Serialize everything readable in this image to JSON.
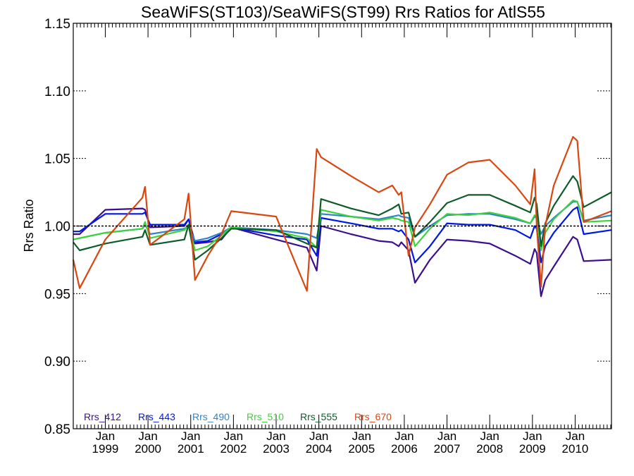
{
  "chart_data": {
    "type": "line",
    "title": "SeaWiFS(ST103)/SeaWiFS(ST99)  Rrs Ratios for AtlS55",
    "xlabel": "",
    "ylabel": "Rrs Ratio",
    "xlim": [
      1998.25,
      2010.85
    ],
    "ylim": [
      0.85,
      1.15
    ],
    "yticks": [
      0.85,
      0.9,
      0.95,
      1.0,
      1.05,
      1.1,
      1.15
    ],
    "ytick_labels": [
      "0.85",
      "0.90",
      "0.95",
      "1.00",
      "1.05",
      "1.10",
      "1.15"
    ],
    "xticks": [
      {
        "x": 1999.0,
        "line1": "Jan",
        "line2": "1999"
      },
      {
        "x": 2000.0,
        "line1": "Jan",
        "line2": "2000"
      },
      {
        "x": 2001.0,
        "line1": "Jan",
        "line2": "2001"
      },
      {
        "x": 2002.0,
        "line1": "Jan",
        "line2": "2002"
      },
      {
        "x": 2003.0,
        "line1": "Jan",
        "line2": "2003"
      },
      {
        "x": 2004.0,
        "line1": "Jan",
        "line2": "2004"
      },
      {
        "x": 2005.0,
        "line1": "Jan",
        "line2": "2005"
      },
      {
        "x": 2006.0,
        "line1": "Jan",
        "line2": "2006"
      },
      {
        "x": 2007.0,
        "line1": "Jan",
        "line2": "2007"
      },
      {
        "x": 2008.0,
        "line1": "Jan",
        "line2": "2008"
      },
      {
        "x": 2009.0,
        "line1": "Jan",
        "line2": "2009"
      },
      {
        "x": 2010.0,
        "line1": "Jan",
        "line2": "2010"
      }
    ],
    "reference_line": 1.0,
    "legend_placement": "bottom-left",
    "series": [
      {
        "name": "Rrs_412",
        "color": "#3b0f8f",
        "x": [
          1998.25,
          1998.4,
          1999.0,
          1999.87,
          1999.93,
          2000.05,
          2000.85,
          2000.95,
          2001.1,
          2001.4,
          2001.72,
          2001.95,
          2003.0,
          2003.72,
          2003.95,
          2004.05,
          2004.75,
          2005.4,
          2005.72,
          2005.87,
          2005.93,
          2006.1,
          2006.25,
          2006.6,
          2007.0,
          2007.5,
          2008.0,
          2008.6,
          2008.95,
          2009.05,
          2009.1,
          2009.2,
          2009.3,
          2009.5,
          2009.95,
          2010.05,
          2010.2,
          2010.85
        ],
        "y": [
          0.994,
          0.994,
          1.012,
          1.013,
          1.012,
          0.999,
          1.0,
          1.005,
          0.987,
          0.988,
          0.99,
          0.999,
          0.99,
          0.984,
          0.967,
          1.0,
          0.994,
          0.989,
          0.988,
          0.985,
          0.988,
          0.982,
          0.958,
          0.975,
          0.99,
          0.989,
          0.987,
          0.978,
          0.972,
          0.983,
          0.98,
          0.948,
          0.96,
          0.97,
          0.992,
          0.99,
          0.974,
          0.975
        ]
      },
      {
        "name": "Rrs_443",
        "color": "#0018e6",
        "x": [
          1998.25,
          1998.4,
          1999.0,
          1999.87,
          1999.93,
          2000.05,
          2000.85,
          2000.95,
          2001.1,
          2001.4,
          2001.72,
          2001.95,
          2003.0,
          2003.72,
          2003.95,
          2004.05,
          2004.75,
          2005.4,
          2005.72,
          2005.87,
          2005.93,
          2006.1,
          2006.25,
          2006.6,
          2007.0,
          2007.5,
          2008.0,
          2008.6,
          2008.95,
          2009.05,
          2009.1,
          2009.2,
          2009.3,
          2009.5,
          2009.95,
          2010.05,
          2010.2,
          2010.85
        ],
        "y": [
          0.996,
          0.996,
          1.009,
          1.009,
          1.01,
          1.001,
          1.001,
          1.005,
          0.988,
          0.989,
          0.994,
          0.999,
          0.993,
          0.99,
          0.978,
          1.006,
          1.002,
          0.998,
          0.998,
          0.996,
          0.997,
          0.99,
          0.973,
          0.985,
          1.002,
          1.001,
          1.001,
          0.997,
          0.991,
          1.0,
          0.998,
          0.973,
          0.985,
          0.995,
          1.012,
          1.014,
          0.994,
          0.997
        ]
      },
      {
        "name": "Rrs_490",
        "color": "#2f83c8",
        "x": [
          1998.25,
          1998.4,
          1999.0,
          1999.87,
          1999.93,
          2000.05,
          2000.85,
          2000.95,
          2001.1,
          2001.4,
          2001.72,
          2001.95,
          2003.0,
          2003.72,
          2003.95,
          2004.05,
          2004.75,
          2005.4,
          2005.72,
          2005.87,
          2005.93,
          2006.1,
          2006.25,
          2006.6,
          2007.0,
          2007.5,
          2008.0,
          2008.6,
          2008.95,
          2009.05,
          2009.1,
          2009.2,
          2009.3,
          2009.5,
          2009.95,
          2010.05,
          2010.2,
          2010.85
        ],
        "y": [
          0.99,
          0.991,
          0.995,
          0.998,
          1.001,
          0.994,
          0.998,
          1.0,
          0.989,
          0.991,
          0.995,
          0.999,
          0.997,
          0.994,
          0.991,
          1.009,
          1.007,
          1.005,
          1.007,
          1.008,
          1.007,
          1.006,
          0.992,
          1.0,
          1.008,
          1.009,
          1.009,
          1.005,
          1.002,
          1.007,
          1.006,
          0.994,
          1.0,
          1.006,
          1.018,
          1.018,
          1.004,
          1.008
        ]
      },
      {
        "name": "Rrs_510",
        "color": "#3dd33a",
        "x": [
          1998.25,
          1998.4,
          1999.0,
          1999.87,
          1999.93,
          2000.05,
          2000.85,
          2000.95,
          2001.1,
          2001.4,
          2001.72,
          2001.95,
          2003.0,
          2003.72,
          2003.95,
          2004.05,
          2004.75,
          2005.4,
          2005.72,
          2005.87,
          2005.93,
          2006.1,
          2006.25,
          2006.6,
          2007.0,
          2007.5,
          2008.0,
          2008.6,
          2008.95,
          2009.05,
          2009.1,
          2009.2,
          2009.3,
          2009.5,
          2009.95,
          2010.05,
          2010.2,
          2010.85
        ],
        "y": [
          0.99,
          0.991,
          0.995,
          0.998,
          1.003,
          0.991,
          0.997,
          1.001,
          0.982,
          0.985,
          0.993,
          0.999,
          0.996,
          0.991,
          0.984,
          1.012,
          1.007,
          1.004,
          1.006,
          1.005,
          1.004,
          1.003,
          0.985,
          0.998,
          1.009,
          1.008,
          1.01,
          1.006,
          1.002,
          1.008,
          1.007,
          0.982,
          0.995,
          1.005,
          1.019,
          1.018,
          1.003,
          1.004
        ]
      },
      {
        "name": "Rrs_555",
        "color": "#0e5c2a",
        "x": [
          1998.25,
          1998.4,
          1999.0,
          1999.87,
          1999.93,
          2000.05,
          2000.85,
          2000.95,
          2001.1,
          2001.4,
          2001.72,
          2001.95,
          2003.0,
          2003.72,
          2003.95,
          2004.05,
          2004.75,
          2005.4,
          2005.72,
          2005.87,
          2005.93,
          2006.1,
          2006.25,
          2006.6,
          2007.0,
          2007.5,
          2008.0,
          2008.6,
          2008.95,
          2009.05,
          2009.1,
          2009.2,
          2009.3,
          2009.5,
          2009.95,
          2010.05,
          2010.2,
          2010.85
        ],
        "y": [
          0.988,
          0.982,
          0.987,
          0.992,
          0.997,
          0.986,
          0.99,
          1.001,
          0.975,
          0.982,
          0.991,
          0.998,
          0.997,
          0.987,
          0.984,
          1.02,
          1.013,
          1.008,
          1.013,
          1.016,
          1.009,
          1.01,
          0.992,
          1.003,
          1.017,
          1.023,
          1.023,
          1.015,
          1.01,
          1.021,
          1.016,
          0.985,
          1.002,
          1.015,
          1.037,
          1.033,
          1.014,
          1.025
        ]
      },
      {
        "name": "Rrs_670",
        "color": "#d9470f",
        "x": [
          1998.25,
          1998.4,
          1999.0,
          1999.87,
          1999.93,
          2000.05,
          2000.85,
          2000.95,
          2001.1,
          2001.4,
          2001.72,
          2001.95,
          2003.0,
          2003.72,
          2003.95,
          2004.05,
          2004.75,
          2005.4,
          2005.72,
          2005.87,
          2005.93,
          2006.1,
          2006.25,
          2006.6,
          2007.0,
          2007.5,
          2008.0,
          2008.6,
          2008.95,
          2009.05,
          2009.1,
          2009.2,
          2009.3,
          2009.5,
          2009.95,
          2010.05,
          2010.2,
          2010.85
        ],
        "y": [
          0.975,
          0.954,
          0.99,
          1.021,
          1.029,
          0.986,
          1.005,
          1.024,
          0.96,
          0.978,
          0.994,
          1.011,
          1.007,
          0.952,
          1.057,
          1.051,
          1.037,
          1.025,
          1.03,
          1.023,
          1.025,
          0.978,
          0.999,
          1.016,
          1.038,
          1.047,
          1.049,
          1.03,
          1.016,
          1.042,
          1.0,
          0.955,
          1.0,
          1.03,
          1.066,
          1.063,
          1.003,
          1.011
        ]
      }
    ]
  }
}
